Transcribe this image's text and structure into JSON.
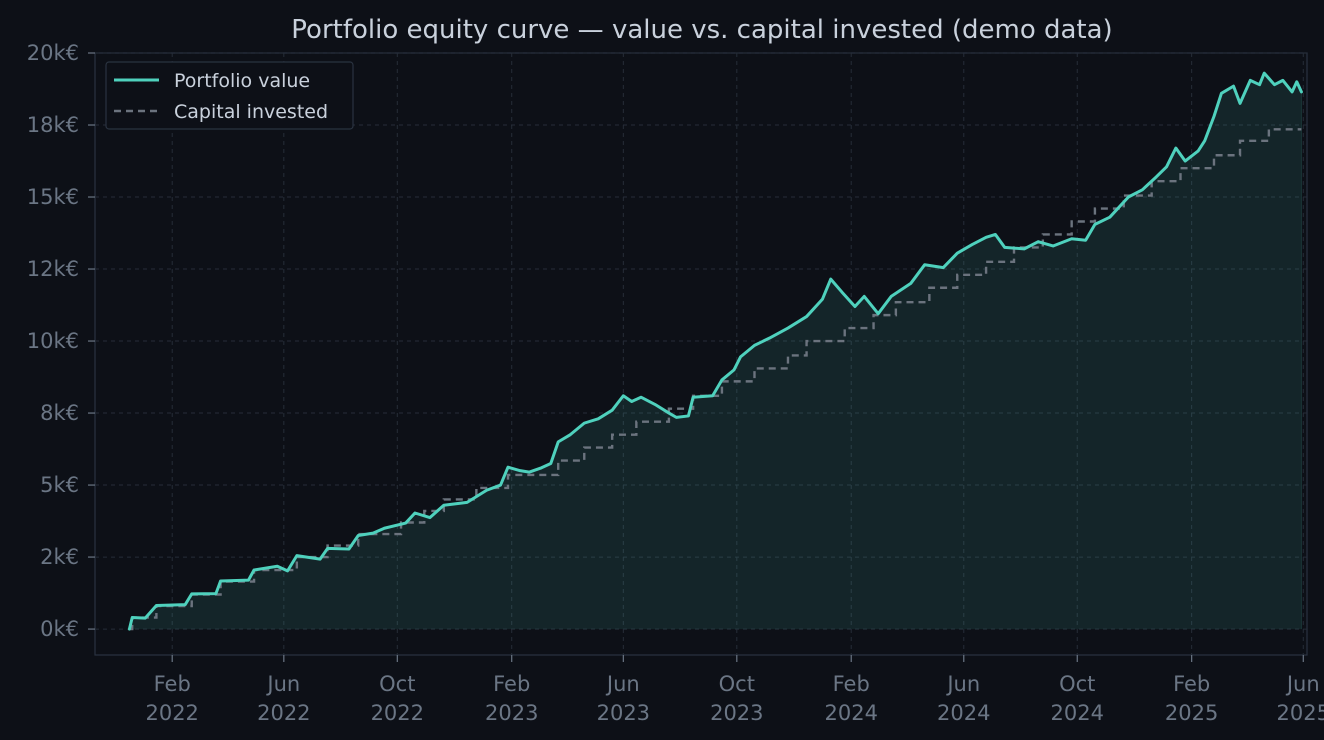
{
  "chart_data": {
    "type": "line",
    "title": "Portfolio equity curve — value vs. capital invested  (demo data)",
    "xlabel": "",
    "ylabel": "",
    "x_range": [
      "2021-11-10",
      "2025-06-05"
    ],
    "ylim": [
      -900,
      20000
    ],
    "y_ticks": [
      0,
      2500,
      5000,
      7500,
      10000,
      12500,
      15000,
      17500,
      20000
    ],
    "y_tick_labels": [
      "0k€",
      "2k€",
      "5k€",
      "8k€",
      "10k€",
      "12k€",
      "15k€",
      "18k€",
      "20k€"
    ],
    "x_ticks": [
      "2022-02-01",
      "2022-06-01",
      "2022-10-01",
      "2023-02-01",
      "2023-06-01",
      "2023-10-01",
      "2024-02-01",
      "2024-06-01",
      "2024-10-01",
      "2025-02-01",
      "2025-06-01"
    ],
    "x_tick_labels": [
      [
        "Feb",
        "2022"
      ],
      [
        "Jun",
        "2022"
      ],
      [
        "Oct",
        "2022"
      ],
      [
        "Feb",
        "2023"
      ],
      [
        "Jun",
        "2023"
      ],
      [
        "Oct",
        "2023"
      ],
      [
        "Feb",
        "2024"
      ],
      [
        "Jun",
        "2024"
      ],
      [
        "Oct",
        "2024"
      ],
      [
        "Feb",
        "2025"
      ],
      [
        "Jun",
        "2025"
      ]
    ],
    "grid": true,
    "legend_position": "top-left",
    "series": [
      {
        "name": "Portfolio value",
        "style": "solid",
        "color": "#4fd1bd",
        "points": [
          [
            "2021-12-17",
            0
          ],
          [
            "2021-12-20",
            400
          ],
          [
            "2022-01-03",
            380
          ],
          [
            "2022-01-15",
            820
          ],
          [
            "2022-02-15",
            850
          ],
          [
            "2022-02-22",
            1220
          ],
          [
            "2022-03-20",
            1230
          ],
          [
            "2022-03-25",
            1670
          ],
          [
            "2022-04-24",
            1700
          ],
          [
            "2022-04-30",
            2050
          ],
          [
            "2022-05-25",
            2180
          ],
          [
            "2022-06-05",
            2020
          ],
          [
            "2022-06-15",
            2550
          ],
          [
            "2022-07-10",
            2430
          ],
          [
            "2022-07-18",
            2800
          ],
          [
            "2022-08-10",
            2780
          ],
          [
            "2022-08-20",
            3250
          ],
          [
            "2022-09-05",
            3330
          ],
          [
            "2022-09-17",
            3500
          ],
          [
            "2022-10-10",
            3680
          ],
          [
            "2022-10-20",
            4030
          ],
          [
            "2022-11-05",
            3870
          ],
          [
            "2022-11-20",
            4300
          ],
          [
            "2022-12-15",
            4400
          ],
          [
            "2023-01-05",
            4820
          ],
          [
            "2023-01-20",
            5000
          ],
          [
            "2023-01-28",
            5620
          ],
          [
            "2023-02-10",
            5500
          ],
          [
            "2023-02-20",
            5450
          ],
          [
            "2023-03-05",
            5600
          ],
          [
            "2023-03-15",
            5750
          ],
          [
            "2023-03-23",
            6500
          ],
          [
            "2023-04-05",
            6750
          ],
          [
            "2023-04-20",
            7150
          ],
          [
            "2023-05-05",
            7300
          ],
          [
            "2023-05-20",
            7600
          ],
          [
            "2023-06-01",
            8100
          ],
          [
            "2023-06-10",
            7900
          ],
          [
            "2023-06-20",
            8050
          ],
          [
            "2023-07-05",
            7800
          ],
          [
            "2023-07-20",
            7500
          ],
          [
            "2023-07-28",
            7350
          ],
          [
            "2023-08-10",
            7400
          ],
          [
            "2023-08-15",
            8050
          ],
          [
            "2023-09-05",
            8100
          ],
          [
            "2023-09-15",
            8650
          ],
          [
            "2023-09-28",
            9000
          ],
          [
            "2023-10-05",
            9450
          ],
          [
            "2023-10-20",
            9850
          ],
          [
            "2023-11-05",
            10100
          ],
          [
            "2023-11-25",
            10450
          ],
          [
            "2023-12-15",
            10850
          ],
          [
            "2024-01-01",
            11450
          ],
          [
            "2024-01-10",
            12150
          ],
          [
            "2024-01-22",
            11700
          ],
          [
            "2024-02-05",
            11200
          ],
          [
            "2024-02-15",
            11550
          ],
          [
            "2024-03-01",
            10950
          ],
          [
            "2024-03-15",
            11550
          ],
          [
            "2024-04-05",
            12000
          ],
          [
            "2024-04-20",
            12650
          ],
          [
            "2024-05-10",
            12550
          ],
          [
            "2024-05-25",
            13050
          ],
          [
            "2024-06-10",
            13350
          ],
          [
            "2024-06-25",
            13600
          ],
          [
            "2024-07-05",
            13700
          ],
          [
            "2024-07-15",
            13250
          ],
          [
            "2024-08-05",
            13200
          ],
          [
            "2024-08-20",
            13450
          ],
          [
            "2024-09-05",
            13300
          ],
          [
            "2024-09-25",
            13550
          ],
          [
            "2024-10-10",
            13500
          ],
          [
            "2024-10-20",
            14050
          ],
          [
            "2024-11-05",
            14300
          ],
          [
            "2024-11-25",
            15000
          ],
          [
            "2024-12-10",
            15250
          ],
          [
            "2024-12-25",
            15700
          ],
          [
            "2025-01-05",
            16050
          ],
          [
            "2025-01-15",
            16700
          ],
          [
            "2025-01-25",
            16250
          ],
          [
            "2025-02-08",
            16600
          ],
          [
            "2025-02-15",
            16950
          ],
          [
            "2025-02-25",
            17800
          ],
          [
            "2025-03-05",
            18600
          ],
          [
            "2025-03-18",
            18850
          ],
          [
            "2025-03-25",
            18250
          ],
          [
            "2025-04-05",
            19050
          ],
          [
            "2025-04-15",
            18900
          ],
          [
            "2025-04-20",
            19300
          ],
          [
            "2025-05-01",
            18900
          ],
          [
            "2025-05-10",
            19050
          ],
          [
            "2025-05-20",
            18650
          ],
          [
            "2025-05-25",
            19000
          ],
          [
            "2025-05-30",
            18650
          ]
        ]
      },
      {
        "name": "Capital invested",
        "style": "dashed",
        "color": "#6b737e",
        "steps": [
          [
            "2021-12-17",
            0
          ],
          [
            "2021-12-20",
            400
          ],
          [
            "2022-01-15",
            800
          ],
          [
            "2022-02-22",
            1200
          ],
          [
            "2022-03-25",
            1650
          ],
          [
            "2022-04-30",
            2050
          ],
          [
            "2022-06-15",
            2500
          ],
          [
            "2022-07-18",
            2900
          ],
          [
            "2022-08-20",
            3300
          ],
          [
            "2022-10-05",
            3700
          ],
          [
            "2022-10-30",
            4100
          ],
          [
            "2022-11-20",
            4500
          ],
          [
            "2022-12-25",
            4900
          ],
          [
            "2023-01-28",
            5350
          ],
          [
            "2023-03-23",
            5850
          ],
          [
            "2023-04-20",
            6300
          ],
          [
            "2023-05-20",
            6750
          ],
          [
            "2023-06-15",
            7200
          ],
          [
            "2023-07-20",
            7650
          ],
          [
            "2023-08-15",
            8100
          ],
          [
            "2023-09-15",
            8600
          ],
          [
            "2023-10-20",
            9050
          ],
          [
            "2023-11-25",
            9500
          ],
          [
            "2023-12-15",
            10000
          ],
          [
            "2024-01-25",
            10450
          ],
          [
            "2024-02-25",
            10900
          ],
          [
            "2024-03-20",
            11350
          ],
          [
            "2024-04-25",
            11850
          ],
          [
            "2024-05-25",
            12300
          ],
          [
            "2024-06-25",
            12750
          ],
          [
            "2024-07-25",
            13250
          ],
          [
            "2024-08-25",
            13700
          ],
          [
            "2024-09-25",
            14150
          ],
          [
            "2024-10-20",
            14600
          ],
          [
            "2024-11-20",
            15050
          ],
          [
            "2024-12-20",
            15550
          ],
          [
            "2025-01-20",
            16000
          ],
          [
            "2025-02-25",
            16450
          ],
          [
            "2025-03-25",
            16950
          ],
          [
            "2025-04-25",
            17350
          ],
          [
            "2025-05-30",
            17350
          ]
        ]
      }
    ]
  }
}
